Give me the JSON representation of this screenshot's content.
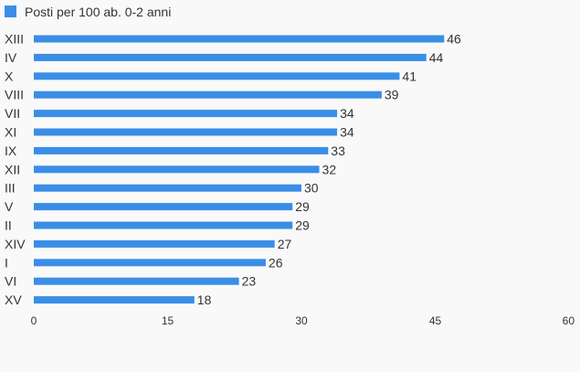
{
  "chart_data": {
    "type": "bar",
    "orientation": "horizontal",
    "title": "",
    "xlabel": "",
    "ylabel": "",
    "legend": {
      "position": "top-left",
      "entries": [
        {
          "name": "Posti per 100 ab. 0-2 anni",
          "color": "#3a8ee6"
        }
      ]
    },
    "categories": [
      "XIII",
      "IV",
      "X",
      "VIII",
      "VII",
      "XI",
      "IX",
      "XII",
      "III",
      "V",
      "II",
      "XIV",
      "I",
      "VI",
      "XV"
    ],
    "series": [
      {
        "name": "Posti per 100 ab. 0-2 anni",
        "color": "#3a8ee6",
        "values": [
          46,
          44,
          41,
          39,
          34,
          34,
          33,
          32,
          30,
          29,
          29,
          27,
          26,
          23,
          18
        ]
      }
    ],
    "xlim": [
      0,
      60
    ],
    "xticks": [
      0,
      15,
      30,
      45,
      60
    ],
    "grid": false
  }
}
